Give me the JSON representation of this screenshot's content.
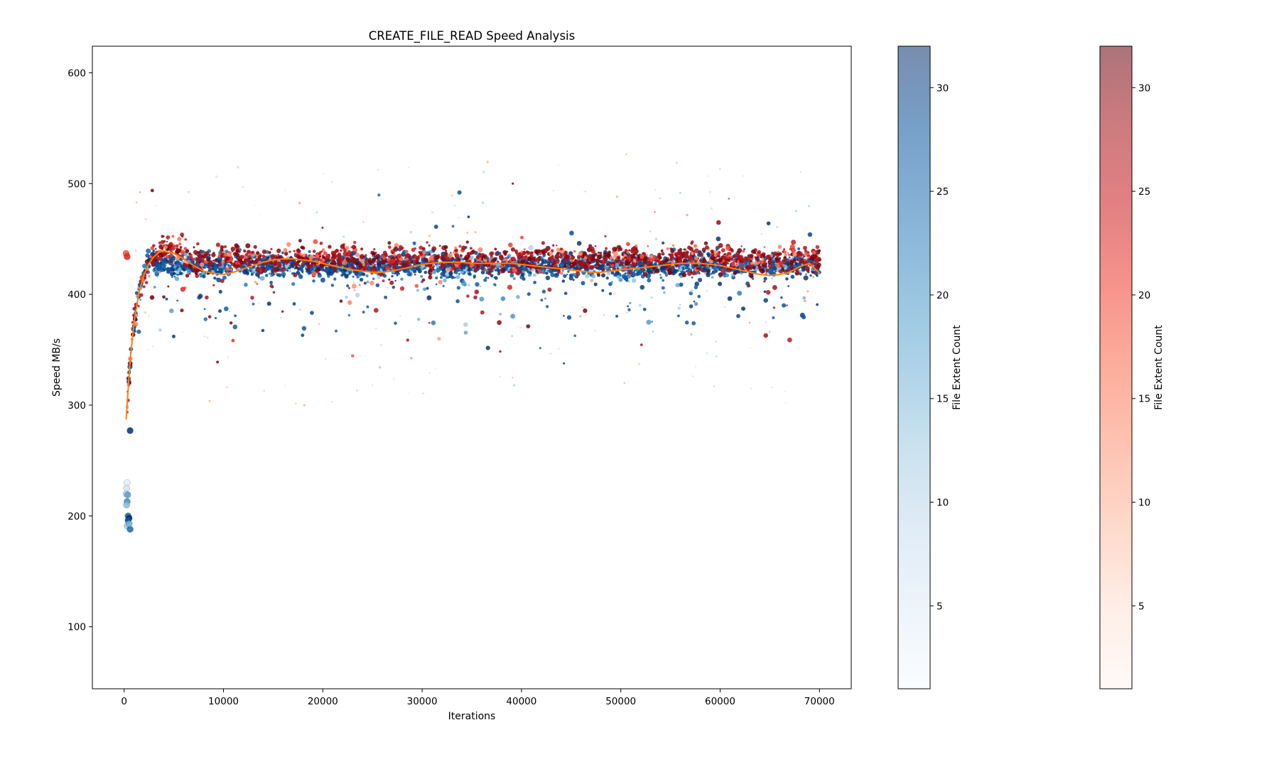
{
  "chart_data": {
    "type": "scatter",
    "title": "CREATE_FILE_READ Speed Analysis",
    "xlabel": "Iterations",
    "ylabel": "Speed MB/s",
    "xlim": [
      -3200,
      73200
    ],
    "ylim": [
      44,
      624
    ],
    "x_ticks": [
      0,
      10000,
      20000,
      30000,
      40000,
      50000,
      60000,
      70000
    ],
    "y_ticks": [
      100,
      200,
      300,
      400,
      500,
      600
    ],
    "grid": false,
    "colorbars": [
      {
        "label": "File Extent Count",
        "cmap": "Blues",
        "range": [
          1,
          32
        ],
        "ticks": [
          5,
          10,
          15,
          20,
          25,
          30
        ],
        "colors": [
          "#f7fbff",
          "#deebf7",
          "#c6dbef",
          "#9ecae1",
          "#6baed6",
          "#4292c6",
          "#2171b5",
          "#08519c",
          "#08306b"
        ]
      },
      {
        "label": "File Extent Count",
        "cmap": "Reds",
        "range": [
          1,
          32
        ],
        "ticks": [
          5,
          10,
          15,
          20,
          25,
          30
        ],
        "colors": [
          "#fff5f0",
          "#fee0d2",
          "#fcbba1",
          "#fc9272",
          "#fb6a4a",
          "#ef3b2c",
          "#cb181d",
          "#a50f15",
          "#67000d"
        ]
      }
    ],
    "trend_line": {
      "color": "#ff7f0e",
      "x": [
        200,
        600,
        1000,
        1500,
        2000,
        2500,
        3000,
        3500,
        4000,
        5000,
        6000,
        7000,
        8000,
        9000,
        10000,
        11000,
        12000,
        13000,
        14000,
        15000,
        16000,
        17000,
        18000,
        19000,
        20000,
        21000,
        22000,
        23000,
        24000,
        25000,
        26000,
        27000,
        28000,
        29000,
        30000,
        31000,
        32000,
        33000,
        34000,
        35000,
        36000,
        37000,
        38000,
        39000,
        40000,
        41000,
        42000,
        43000,
        44000,
        45000,
        46000,
        47000,
        48000,
        49000,
        50000,
        51000,
        52000,
        53000,
        54000,
        55000,
        56000,
        57000,
        58000,
        59000,
        60000,
        61000,
        62000,
        63000,
        64000,
        65000,
        66000,
        67000,
        68000,
        69000,
        70000
      ],
      "y": [
        287,
        340,
        375,
        402,
        418,
        428,
        434,
        438,
        439,
        437,
        432,
        426,
        421,
        419,
        418,
        420,
        423,
        426,
        429,
        431,
        432,
        432,
        431,
        430,
        428,
        426,
        424,
        422,
        421,
        420,
        420,
        421,
        423,
        425,
        427,
        428,
        429,
        429,
        429,
        428,
        428,
        428,
        428,
        428,
        427,
        426,
        425,
        424,
        423,
        422,
        421,
        420,
        420,
        421,
        422,
        423,
        424,
        425,
        426,
        427,
        428,
        428,
        428,
        427,
        426,
        424,
        422,
        420,
        418,
        417,
        418,
        420,
        425,
        428,
        419
      ]
    },
    "series": [
      {
        "name": "",
        "cmap": "Blues",
        "center": 426,
        "spread": 9,
        "x_range": [
          300,
          70000
        ]
      },
      {
        "name": "",
        "cmap": "Reds",
        "center": 432,
        "spread": 11,
        "x_range": [
          300,
          70000
        ]
      }
    ],
    "highlighted_points": [
      {
        "x": 200,
        "y": 437,
        "cmap": "Reds",
        "extent": 18
      },
      {
        "x": 300,
        "y": 434,
        "cmap": "Reds",
        "extent": 22
      },
      {
        "x": 600,
        "y": 277,
        "cmap": "Blues",
        "extent": 30
      },
      {
        "x": 300,
        "y": 230,
        "cmap": "Blues",
        "extent": 4
      },
      {
        "x": 250,
        "y": 225,
        "cmap": "Blues",
        "extent": 6
      },
      {
        "x": 200,
        "y": 220,
        "cmap": "Blues",
        "extent": 9
      },
      {
        "x": 350,
        "y": 219,
        "cmap": "Blues",
        "extent": 18
      },
      {
        "x": 300,
        "y": 213,
        "cmap": "Blues",
        "extent": 20
      },
      {
        "x": 250,
        "y": 210,
        "cmap": "Blues",
        "extent": 14
      },
      {
        "x": 400,
        "y": 200,
        "cmap": "Blues",
        "extent": 25
      },
      {
        "x": 500,
        "y": 198,
        "cmap": "Blues",
        "extent": 32
      },
      {
        "x": 400,
        "y": 196,
        "cmap": "Blues",
        "extent": 28
      },
      {
        "x": 300,
        "y": 191,
        "cmap": "Blues",
        "extent": 12
      },
      {
        "x": 600,
        "y": 188,
        "cmap": "Blues",
        "extent": 24
      },
      {
        "x": 500,
        "y": 193,
        "cmap": "Blues",
        "extent": 16
      }
    ]
  }
}
